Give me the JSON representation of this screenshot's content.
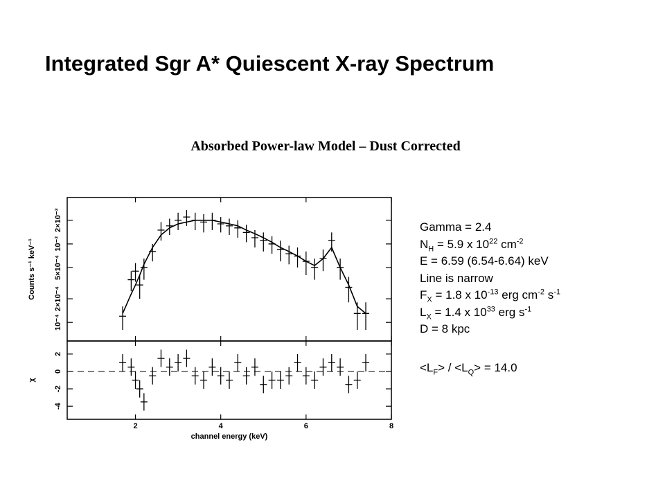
{
  "title": "Integrated Sgr A* Quiescent X-ray Spectrum",
  "subtitle": "Absorbed Power-law Model – Dust Corrected",
  "fit_text": [
    [
      "Gamma = 2.4"
    ],
    [
      "N",
      {
        "sub": "H"
      },
      " = 5.9 x 10",
      {
        "sup": "22"
      },
      " cm",
      {
        "sup": "-2"
      }
    ],
    [
      "E = 6.59 (6.54-6.64) keV"
    ],
    [
      "Line is narrow"
    ],
    [
      "F",
      {
        "sub": "X"
      },
      " = 1.8 x 10",
      {
        "sup": "-13"
      },
      " erg cm",
      {
        "sup": "-2"
      },
      " s",
      {
        "sup": "-1"
      }
    ],
    [
      "L",
      {
        "sub": "X"
      },
      " = 1.4 x 10",
      {
        "sup": "33"
      },
      " erg s",
      {
        "sup": "-1"
      }
    ],
    [
      "D = 8 kpc"
    ],
    [
      "<L",
      {
        "sub": "F"
      },
      "> / <L",
      {
        "sub": "Q"
      },
      "> = 14.0"
    ]
  ],
  "chart_data": [
    {
      "type": "errorbar",
      "log_y": true,
      "ylabel": "Counts s⁻¹ keV⁻¹",
      "x": [
        1.7,
        1.9,
        2.0,
        2.1,
        2.2,
        2.4,
        2.6,
        2.8,
        3.0,
        3.2,
        3.4,
        3.6,
        3.8,
        4.0,
        4.2,
        4.4,
        4.6,
        4.8,
        5.0,
        5.2,
        5.4,
        5.6,
        5.8,
        6.0,
        6.2,
        6.4,
        6.6,
        6.8,
        7.0,
        7.2,
        7.4
      ],
      "values": [
        0.00012,
        0.00035,
        0.00045,
        0.0003,
        0.0005,
        0.0008,
        0.0015,
        0.0017,
        0.002,
        0.0022,
        0.002,
        0.0019,
        0.002,
        0.0018,
        0.0017,
        0.0016,
        0.0014,
        0.0012,
        0.0011,
        0.001,
        0.00085,
        0.00075,
        0.0007,
        0.0006,
        0.0005,
        0.00065,
        0.0011,
        0.0005,
        0.00028,
        0.00013,
        0.00013
      ],
      "y_err": [
        4e-05,
        0.0001,
        0.00012,
        0.0001,
        0.00015,
        0.0002,
        0.0004,
        0.0004,
        0.0005,
        0.0005,
        0.0005,
        0.0005,
        0.0005,
        0.0004,
        0.0004,
        0.0004,
        0.00035,
        0.0003,
        0.0003,
        0.00025,
        0.00025,
        0.0002,
        0.0002,
        0.0002,
        0.00015,
        0.0002,
        0.0003,
        0.00015,
        0.0001,
        5e-05,
        5e-05
      ],
      "model": [
        0.00013,
        0.00023,
        0.0003,
        0.0004,
        0.00055,
        0.0009,
        0.0013,
        0.0016,
        0.0018,
        0.0019,
        0.002,
        0.002,
        0.002,
        0.0019,
        0.0018,
        0.0017,
        0.0015,
        0.00135,
        0.0012,
        0.00105,
        0.0009,
        0.0008,
        0.0007,
        0.0006,
        0.00053,
        0.00065,
        0.0009,
        0.0005,
        0.0003,
        0.00016,
        0.00013
      ],
      "color": "#000000",
      "xlim": [
        0.4,
        8
      ],
      "xticks": [
        2,
        4,
        6,
        8
      ],
      "ylim": [
        5.8e-05,
        0.0039
      ],
      "yticks": [
        {
          "value": 0.0001,
          "label": "10⁻⁴"
        },
        {
          "value": 0.0002,
          "label": "2×10⁻⁴"
        },
        {
          "value": 0.0005,
          "label": "5×10⁻⁴"
        },
        {
          "value": 0.001,
          "label": "10⁻³"
        },
        {
          "value": 0.002,
          "label": "2×10⁻³"
        }
      ]
    },
    {
      "type": "errorbar",
      "log_y": false,
      "ylabel": "χ",
      "xlabel": "channel energy (keV)",
      "x": [
        1.7,
        1.9,
        2.0,
        2.1,
        2.2,
        2.4,
        2.6,
        2.8,
        3.0,
        3.2,
        3.4,
        3.6,
        3.8,
        4.0,
        4.2,
        4.4,
        4.6,
        4.8,
        5.0,
        5.2,
        5.4,
        5.6,
        5.8,
        6.0,
        6.2,
        6.4,
        6.6,
        6.8,
        7.0,
        7.2,
        7.4
      ],
      "values": [
        1,
        0.5,
        -1,
        -2,
        -3.5,
        -0.5,
        1.5,
        0.5,
        1,
        1.5,
        -0.5,
        -1,
        0.5,
        -0.5,
        -1,
        1,
        -0.5,
        0.5,
        -1.5,
        -1,
        -1,
        -0.5,
        1,
        -0.5,
        -1,
        0.5,
        1,
        0.5,
        -1.5,
        -1,
        1
      ],
      "y_err": [
        1,
        1,
        1,
        1,
        1,
        1,
        1,
        1,
        1,
        1,
        1,
        1,
        1,
        1,
        1,
        1,
        1,
        1,
        1,
        1,
        1,
        1,
        1,
        1,
        1,
        1,
        1,
        1,
        1,
        1,
        1
      ],
      "ref_line": 0,
      "color": "#000000",
      "xlim": [
        0.4,
        8
      ],
      "xticks": [
        2,
        4,
        6,
        8
      ],
      "xtick_labels": true,
      "ylim": [
        -5.5,
        3.5
      ],
      "yticks": [
        -4,
        -2,
        0,
        2
      ]
    }
  ]
}
